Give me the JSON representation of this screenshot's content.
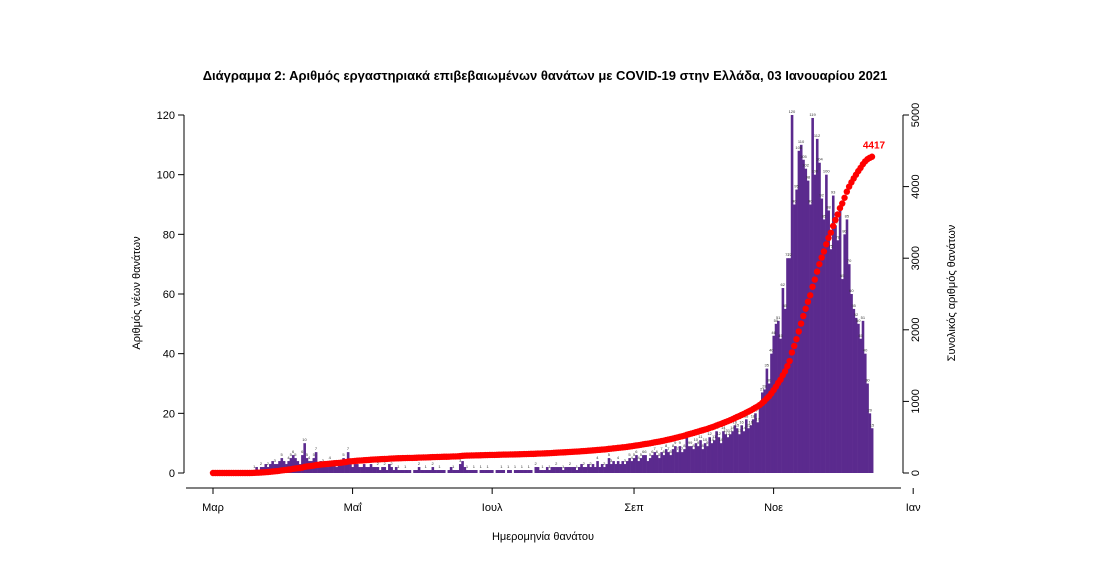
{
  "chart_data": {
    "type": "bar",
    "title": "Διάγραμμα 2: Αριθμός εργαστηριακά επιβεβαιωμένων θανάτων με COVID-19 στην Ελλάδα, 03 Ιανουαρίου 2021",
    "xlabel": "Ημερομηνία θανάτου",
    "ylabel": "Αριθμός νέων θανάτων",
    "y2label": "Συνολικός αριθμός θανάτων",
    "ylim": [
      0,
      125
    ],
    "y2lim": [
      0,
      5000
    ],
    "yticks": [
      0,
      20,
      40,
      60,
      80,
      100,
      120
    ],
    "y2ticks": [
      0,
      1000,
      2000,
      3000,
      4000,
      5000
    ],
    "xticks": [
      {
        "day": 0,
        "label": "Μαρ"
      },
      {
        "day": 61,
        "label": "Μαΐ"
      },
      {
        "day": 122,
        "label": "Ιουλ"
      },
      {
        "day": 184,
        "label": "Σεπ"
      },
      {
        "day": 245,
        "label": "Νοε"
      },
      {
        "day": 306,
        "label": "Ιαν"
      }
    ],
    "first_date": "2020-02-26",
    "bar_color": "#5b2a8e",
    "line_color": "#ff0000",
    "daily_deaths": [
      0,
      0,
      0,
      0,
      0,
      0,
      0,
      0,
      0,
      0,
      0,
      0,
      0,
      0,
      0,
      0,
      0,
      1,
      1,
      2,
      1,
      2,
      2,
      3,
      2,
      3,
      4,
      3,
      3,
      4,
      5,
      4,
      3,
      4,
      5,
      6,
      5,
      4,
      3,
      6,
      10,
      5,
      4,
      4,
      5,
      7,
      3,
      4,
      3,
      3,
      2,
      4,
      3,
      3,
      2,
      3,
      3,
      5,
      4,
      7,
      3,
      2,
      3,
      3,
      2,
      2,
      3,
      2,
      2,
      3,
      2,
      2,
      2,
      1,
      2,
      2,
      1,
      3,
      2,
      1,
      2,
      1,
      1,
      1,
      1,
      1,
      1,
      0,
      1,
      1,
      2,
      1,
      1,
      1,
      1,
      1,
      2,
      1,
      1,
      1,
      1,
      1,
      0,
      1,
      2,
      1,
      1,
      1,
      3,
      4,
      2,
      1,
      1,
      1,
      1,
      1,
      0,
      1,
      1,
      1,
      1,
      1,
      1,
      0,
      1,
      1,
      1,
      1,
      0,
      1,
      1,
      0,
      1,
      1,
      1,
      1,
      1,
      1,
      1,
      1,
      0,
      2,
      2,
      1,
      1,
      1,
      2,
      1,
      2,
      2,
      2,
      2,
      2,
      1,
      2,
      2,
      2,
      2,
      2,
      1,
      2,
      3,
      2,
      2,
      3,
      2,
      3,
      2,
      4,
      2,
      3,
      2,
      3,
      5,
      3,
      4,
      3,
      4,
      3,
      4,
      3,
      4,
      5,
      4,
      5,
      6,
      4,
      5,
      6,
      6,
      4,
      5,
      6,
      7,
      6,
      5,
      7,
      6,
      8,
      7,
      6,
      8,
      9,
      7,
      9,
      7,
      8,
      12,
      9,
      9,
      8,
      10,
      9,
      11,
      8,
      10,
      9,
      12,
      10,
      11,
      14,
      12,
      10,
      14,
      13,
      12,
      13,
      14,
      16,
      15,
      13,
      16,
      14,
      18,
      15,
      16,
      18,
      20,
      17,
      22,
      27,
      28,
      35,
      30,
      40,
      46,
      50,
      51,
      45,
      62,
      55,
      72,
      72,
      120,
      90,
      95,
      108,
      110,
      105,
      102,
      98,
      90,
      119,
      100,
      112,
      104,
      92,
      85,
      100,
      88,
      75,
      93,
      83,
      78,
      88,
      65,
      80,
      85,
      70,
      60,
      55,
      52,
      50,
      45,
      51,
      40,
      30,
      20,
      15
    ]
  }
}
